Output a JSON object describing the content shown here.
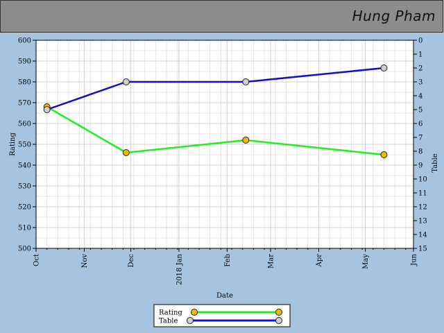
{
  "header": {
    "player_name": "Hung Pham"
  },
  "chart_data": {
    "type": "line",
    "xlabel": "Date",
    "ylabel_left": "Rating",
    "ylabel_right": "Table",
    "ylim_left": [
      500,
      600
    ],
    "ylim_right": [
      0,
      15
    ],
    "y_ticks_left": [
      500,
      510,
      520,
      530,
      540,
      550,
      560,
      570,
      580,
      590,
      600
    ],
    "y_ticks_right": [
      0,
      1,
      2,
      3,
      4,
      5,
      6,
      7,
      8,
      9,
      10,
      11,
      12,
      13,
      14,
      15
    ],
    "x_range": [
      "2017-10-01",
      "2018-06-01"
    ],
    "x_ticks": [
      {
        "date": "2017-10-01",
        "label": "Oct"
      },
      {
        "date": "2017-11-01",
        "label": "Nov"
      },
      {
        "date": "2017-12-01",
        "label": "Dec"
      },
      {
        "date": "2018-01-01",
        "label": "2018 Jan"
      },
      {
        "date": "2018-02-01",
        "label": "Feb"
      },
      {
        "date": "2018-03-01",
        "label": "Mar"
      },
      {
        "date": "2018-04-01",
        "label": "Apr"
      },
      {
        "date": "2018-05-01",
        "label": "May"
      },
      {
        "date": "2018-06-01",
        "label": "Jun"
      }
    ],
    "grid": true,
    "legend_position": "bottom",
    "series": [
      {
        "name": "Rating",
        "axis": "left",
        "color": "#22ee22",
        "marker_color": "#f5b800",
        "points": [
          {
            "x": "2017-10-08",
            "y": 568
          },
          {
            "x": "2017-11-28",
            "y": 546
          },
          {
            "x": "2018-02-13",
            "y": 552
          },
          {
            "x": "2018-05-13",
            "y": 545
          }
        ]
      },
      {
        "name": "Table",
        "axis": "right",
        "color": "#1111cc",
        "marker_color": "#d0d0d0",
        "points": [
          {
            "x": "2017-10-08",
            "y": 5
          },
          {
            "x": "2017-11-28",
            "y": 3
          },
          {
            "x": "2018-02-13",
            "y": 3
          },
          {
            "x": "2018-05-13",
            "y": 2
          }
        ]
      }
    ]
  }
}
